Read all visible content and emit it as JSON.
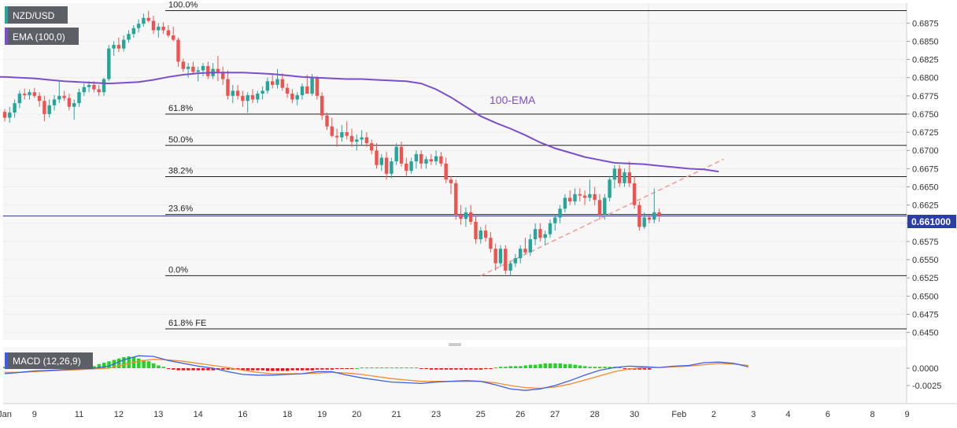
{
  "header": {
    "symbol_badge": "NZD/USD",
    "ema_badge": "EMA (100,0)",
    "macd_badge": "MACD (12,26,9)"
  },
  "colors": {
    "up": "#26a69a",
    "down": "#ef5350",
    "ema": "#7b4fc9",
    "trendline": "#ef9a9a",
    "price_line": "#2b3ea8",
    "macd_line": "#3f5fe0",
    "signal_line": "#f28b30",
    "hist_pos": "#21d421",
    "hist_neg": "#ee1111",
    "badge_bg": "#5c5f66",
    "panel_bg": "#f7f7f7"
  },
  "chart_data": {
    "type": "candlestick",
    "price_axis": {
      "ylim": [
        0.6442,
        0.6898
      ],
      "ticks": [
        "0.6875",
        "0.6850",
        "0.6825",
        "0.6800",
        "0.6775",
        "0.6750",
        "0.6725",
        "0.6700",
        "0.6675",
        "0.6650",
        "0.6625",
        "0.6600",
        "0.6575",
        "0.6550",
        "0.6525",
        "0.6500",
        "0.6475",
        "0.6450"
      ]
    },
    "current_price": "0.661000",
    "x_axis": {
      "ticks": [
        "Jan",
        "9",
        "11",
        "12",
        "13",
        "14",
        "16",
        "18",
        "19",
        "20",
        "21",
        "23",
        "25",
        "26",
        "27",
        "28",
        "30",
        "Feb",
        "2",
        "3",
        "4",
        "6",
        "8",
        "9"
      ]
    },
    "fib_levels": [
      {
        "label": "100.0%",
        "value": 0.6892
      },
      {
        "label": "61.8%",
        "value": 0.675
      },
      {
        "label": "50.0%",
        "value": 0.6707
      },
      {
        "label": "38.2%",
        "value": 0.6664
      },
      {
        "label": "23.6%",
        "value": 0.6612
      },
      {
        "label": "0.0%",
        "value": 0.6528
      },
      {
        "label": "61.8% FE",
        "value": 0.6455
      }
    ],
    "annotations": [
      {
        "text": "100-EMA"
      }
    ],
    "candles_ohlc": [
      [
        0.6753,
        0.6757,
        0.674,
        0.6745
      ],
      [
        0.6745,
        0.676,
        0.6738,
        0.6752
      ],
      [
        0.6752,
        0.677,
        0.6745,
        0.6765
      ],
      [
        0.6765,
        0.6782,
        0.6758,
        0.6778
      ],
      [
        0.6778,
        0.6785,
        0.677,
        0.6776
      ],
      [
        0.6776,
        0.6784,
        0.677,
        0.678
      ],
      [
        0.678,
        0.6786,
        0.6772,
        0.6775
      ],
      [
        0.6775,
        0.678,
        0.676,
        0.6768
      ],
      [
        0.6768,
        0.6775,
        0.674,
        0.675
      ],
      [
        0.675,
        0.677,
        0.6745,
        0.6762
      ],
      [
        0.6762,
        0.6776,
        0.6755,
        0.677
      ],
      [
        0.677,
        0.6795,
        0.6765,
        0.6775
      ],
      [
        0.6775,
        0.6782,
        0.6768,
        0.6772
      ],
      [
        0.6772,
        0.6778,
        0.6755,
        0.676
      ],
      [
        0.676,
        0.677,
        0.6742,
        0.6765
      ],
      [
        0.6765,
        0.6785,
        0.676,
        0.678
      ],
      [
        0.678,
        0.6792,
        0.6775,
        0.6787
      ],
      [
        0.6787,
        0.6795,
        0.678,
        0.679
      ],
      [
        0.679,
        0.6795,
        0.678,
        0.6784
      ],
      [
        0.6784,
        0.679,
        0.6775,
        0.678
      ],
      [
        0.678,
        0.68,
        0.6775,
        0.6798
      ],
      [
        0.6798,
        0.6845,
        0.6795,
        0.684
      ],
      [
        0.684,
        0.685,
        0.683,
        0.6845
      ],
      [
        0.6845,
        0.6855,
        0.6835,
        0.684
      ],
      [
        0.684,
        0.6858,
        0.6836,
        0.6852
      ],
      [
        0.6852,
        0.6865,
        0.6848,
        0.686
      ],
      [
        0.686,
        0.6872,
        0.6855,
        0.6868
      ],
      [
        0.6868,
        0.688,
        0.6862,
        0.6874
      ],
      [
        0.6874,
        0.6888,
        0.687,
        0.6882
      ],
      [
        0.6882,
        0.6892,
        0.6876,
        0.6878
      ],
      [
        0.6878,
        0.6885,
        0.686,
        0.6865
      ],
      [
        0.6865,
        0.6875,
        0.6855,
        0.687
      ],
      [
        0.687,
        0.6876,
        0.686,
        0.6865
      ],
      [
        0.6865,
        0.6872,
        0.6855,
        0.6858
      ],
      [
        0.6858,
        0.687,
        0.685,
        0.6852
      ],
      [
        0.6852,
        0.6855,
        0.6815,
        0.6822
      ],
      [
        0.6822,
        0.6826,
        0.6808,
        0.6812
      ],
      [
        0.6812,
        0.682,
        0.68,
        0.6815
      ],
      [
        0.6815,
        0.6822,
        0.6805,
        0.6808
      ],
      [
        0.6808,
        0.6815,
        0.6795,
        0.681
      ],
      [
        0.681,
        0.682,
        0.6802,
        0.6816
      ],
      [
        0.6816,
        0.6822,
        0.6798,
        0.6802
      ],
      [
        0.6802,
        0.682,
        0.6798,
        0.6812
      ],
      [
        0.6812,
        0.683,
        0.6795,
        0.6808
      ],
      [
        0.6808,
        0.6815,
        0.679,
        0.6798
      ],
      [
        0.6798,
        0.681,
        0.677,
        0.6775
      ],
      [
        0.6775,
        0.679,
        0.6765,
        0.6782
      ],
      [
        0.6782,
        0.679,
        0.677,
        0.6775
      ],
      [
        0.6775,
        0.6782,
        0.676,
        0.6768
      ],
      [
        0.6768,
        0.678,
        0.6752,
        0.6776
      ],
      [
        0.6776,
        0.6784,
        0.6765,
        0.677
      ],
      [
        0.677,
        0.6782,
        0.6765,
        0.6778
      ],
      [
        0.6778,
        0.6788,
        0.677,
        0.6782
      ],
      [
        0.6782,
        0.68,
        0.6778,
        0.6795
      ],
      [
        0.6795,
        0.6805,
        0.6785,
        0.679
      ],
      [
        0.679,
        0.6812,
        0.6785,
        0.6798
      ],
      [
        0.6798,
        0.6806,
        0.6782,
        0.6786
      ],
      [
        0.6786,
        0.6792,
        0.6772,
        0.6778
      ],
      [
        0.6778,
        0.6784,
        0.6765,
        0.677
      ],
      [
        0.677,
        0.678,
        0.6762,
        0.6776
      ],
      [
        0.6776,
        0.6792,
        0.677,
        0.6788
      ],
      [
        0.6788,
        0.6804,
        0.678,
        0.6778
      ],
      [
        0.6778,
        0.6805,
        0.6775,
        0.68
      ],
      [
        0.68,
        0.6802,
        0.677,
        0.6775
      ],
      [
        0.6775,
        0.678,
        0.6742,
        0.6748
      ],
      [
        0.6748,
        0.6752,
        0.6728,
        0.6733
      ],
      [
        0.6733,
        0.6745,
        0.6718,
        0.672
      ],
      [
        0.672,
        0.673,
        0.6705,
        0.6718
      ],
      [
        0.6718,
        0.6735,
        0.6712,
        0.6725
      ],
      [
        0.6725,
        0.674,
        0.6715,
        0.672
      ],
      [
        0.672,
        0.673,
        0.6705,
        0.6712
      ],
      [
        0.6712,
        0.6722,
        0.67,
        0.6715
      ],
      [
        0.6715,
        0.6728,
        0.6708,
        0.6718
      ],
      [
        0.6718,
        0.6725,
        0.6705,
        0.671
      ],
      [
        0.671,
        0.6715,
        0.6695,
        0.67
      ],
      [
        0.67,
        0.671,
        0.6675,
        0.668
      ],
      [
        0.668,
        0.6695,
        0.6672,
        0.669
      ],
      [
        0.669,
        0.6698,
        0.666,
        0.6668
      ],
      [
        0.6668,
        0.669,
        0.6662,
        0.6685
      ],
      [
        0.6685,
        0.671,
        0.668,
        0.6705
      ],
      [
        0.6705,
        0.6712,
        0.6678,
        0.6682
      ],
      [
        0.6682,
        0.669,
        0.6665,
        0.6672
      ],
      [
        0.6672,
        0.669,
        0.6668,
        0.6685
      ],
      [
        0.6685,
        0.67,
        0.6675,
        0.6695
      ],
      [
        0.6695,
        0.67,
        0.6675,
        0.6682
      ],
      [
        0.6682,
        0.6692,
        0.6675,
        0.6688
      ],
      [
        0.6688,
        0.6695,
        0.668,
        0.6685
      ],
      [
        0.6685,
        0.67,
        0.668,
        0.6692
      ],
      [
        0.6692,
        0.6698,
        0.6678,
        0.6682
      ],
      [
        0.6682,
        0.669,
        0.6655,
        0.666
      ],
      [
        0.666,
        0.6665,
        0.664,
        0.6655
      ],
      [
        0.6655,
        0.666,
        0.6605,
        0.6612
      ],
      [
        0.6612,
        0.6625,
        0.6598,
        0.6606
      ],
      [
        0.6606,
        0.6622,
        0.6595,
        0.6615
      ],
      [
        0.6615,
        0.6625,
        0.6598,
        0.6602
      ],
      [
        0.6602,
        0.661,
        0.6572,
        0.6578
      ],
      [
        0.6578,
        0.6595,
        0.6572,
        0.659
      ],
      [
        0.659,
        0.6598,
        0.6575,
        0.658
      ],
      [
        0.658,
        0.6588,
        0.656,
        0.6565
      ],
      [
        0.6565,
        0.6572,
        0.6535,
        0.6545
      ],
      [
        0.6545,
        0.657,
        0.654,
        0.6565
      ],
      [
        0.6565,
        0.657,
        0.653,
        0.6535
      ],
      [
        0.6535,
        0.6548,
        0.6528,
        0.6545
      ],
      [
        0.6545,
        0.6558,
        0.654,
        0.6552
      ],
      [
        0.6552,
        0.657,
        0.6545,
        0.6565
      ],
      [
        0.6565,
        0.658,
        0.6558,
        0.656
      ],
      [
        0.656,
        0.6585,
        0.6555,
        0.6578
      ],
      [
        0.6578,
        0.66,
        0.657,
        0.6592
      ],
      [
        0.6592,
        0.66,
        0.6575,
        0.658
      ],
      [
        0.658,
        0.659,
        0.657,
        0.6585
      ],
      [
        0.6585,
        0.6605,
        0.658,
        0.66
      ],
      [
        0.66,
        0.6612,
        0.659,
        0.6608
      ],
      [
        0.6608,
        0.6625,
        0.66,
        0.662
      ],
      [
        0.662,
        0.664,
        0.6615,
        0.6635
      ],
      [
        0.6635,
        0.6645,
        0.6625,
        0.663
      ],
      [
        0.663,
        0.6648,
        0.6625,
        0.664
      ],
      [
        0.664,
        0.6648,
        0.663,
        0.6638
      ],
      [
        0.6638,
        0.6645,
        0.6625,
        0.6635
      ],
      [
        0.6635,
        0.666,
        0.663,
        0.664
      ],
      [
        0.664,
        0.665,
        0.6625,
        0.6632
      ],
      [
        0.6632,
        0.664,
        0.6605,
        0.6612
      ],
      [
        0.6612,
        0.664,
        0.6605,
        0.6635
      ],
      [
        0.6635,
        0.6665,
        0.663,
        0.666
      ],
      [
        0.666,
        0.668,
        0.6648,
        0.6675
      ],
      [
        0.6675,
        0.668,
        0.665,
        0.6655
      ],
      [
        0.6655,
        0.6675,
        0.665,
        0.667
      ],
      [
        0.667,
        0.6685,
        0.665,
        0.6655
      ],
      [
        0.6655,
        0.6665,
        0.662,
        0.6625
      ],
      [
        0.6625,
        0.663,
        0.659,
        0.6595
      ],
      [
        0.6595,
        0.6615,
        0.6592,
        0.6608
      ],
      [
        0.6608,
        0.6612,
        0.66,
        0.6605
      ],
      [
        0.6605,
        0.6648,
        0.66,
        0.6615
      ],
      [
        0.6615,
        0.662,
        0.6602,
        0.661
      ]
    ],
    "ema_100": [
      0.6801,
      0.68,
      0.6799,
      0.6797,
      0.6795,
      0.6794,
      0.6793,
      0.6792,
      0.6793,
      0.6794,
      0.6797,
      0.6801,
      0.6804,
      0.6806,
      0.6807,
      0.6807,
      0.6807,
      0.6806,
      0.6805,
      0.6803,
      0.6801,
      0.68,
      0.6799,
      0.6798,
      0.6798,
      0.6797,
      0.6796,
      0.6795,
      0.6792,
      0.6784,
      0.6773,
      0.676,
      0.6747,
      0.6738,
      0.673,
      0.6721,
      0.6711,
      0.6703,
      0.6697,
      0.6691,
      0.6687,
      0.6683,
      0.6682,
      0.6681,
      0.6679,
      0.6677,
      0.6675,
      0.6674,
      0.6671
    ],
    "ema_step": 3,
    "macd_axis": {
      "ticks": [
        "0.0000",
        "-0.0025"
      ]
    },
    "macd_line": [
      -0.0008,
      -0.0006,
      -0.0004,
      -0.0003,
      -0.0002,
      -0.0001,
      0.0,
      0.0003,
      0.0012,
      0.0018,
      0.0017,
      0.0011,
      0.0007,
      0.0003,
      0.0,
      -0.0005,
      -0.0009,
      -0.001,
      -0.001,
      -0.0009,
      -0.0008,
      -0.0005,
      -0.0005,
      -0.001,
      -0.0014,
      -0.0017,
      -0.002,
      -0.0021,
      -0.0022,
      -0.002,
      -0.0019,
      -0.0018,
      -0.0019,
      -0.0024,
      -0.003,
      -0.0032,
      -0.003,
      -0.0025,
      -0.0018,
      -0.001,
      -0.0003,
      0.0001,
      0.0003,
      0.0002,
      0.0001,
      0.0003,
      0.0004,
      0.0008,
      0.0009,
      0.0007,
      0.0002
    ],
    "signal_line": [
      -0.0006,
      -0.0006,
      -0.0005,
      -0.0004,
      -0.0003,
      -0.0002,
      -0.0001,
      0.0,
      0.0005,
      0.001,
      0.0013,
      0.0012,
      0.001,
      0.0007,
      0.0004,
      0.0001,
      -0.0003,
      -0.0006,
      -0.0008,
      -0.0008,
      -0.0008,
      -0.0007,
      -0.0006,
      -0.0007,
      -0.0009,
      -0.0012,
      -0.0015,
      -0.0017,
      -0.0019,
      -0.0019,
      -0.0019,
      -0.0019,
      -0.0019,
      -0.0021,
      -0.0025,
      -0.0028,
      -0.0029,
      -0.0027,
      -0.0023,
      -0.0017,
      -0.0011,
      -0.0005,
      -0.0001,
      0.0001,
      0.0001,
      0.0002,
      0.0003,
      0.0005,
      0.0007,
      0.0006,
      0.0004
    ],
    "macd_step": 3,
    "macd_hist": [
      0.0002,
      0.0002,
      0.0002,
      0.0002,
      0.0002,
      0.0002,
      0.0002,
      0.0002,
      0.0003,
      0.0003,
      0.0003,
      0.0002,
      0.0003,
      0.0003,
      0.0003,
      0.0003,
      0.0002,
      0.0003,
      0.0003,
      0.0006,
      0.0008,
      0.001,
      0.0012,
      0.0014,
      0.0016,
      0.0017,
      0.0016,
      0.0014,
      0.0012,
      0.001,
      0.0007,
      0.0004,
      0.0002,
      -0.0001,
      -0.0002,
      -0.0003,
      -0.0003,
      -0.0003,
      -0.0003,
      -0.0003,
      -0.0003,
      -0.0003,
      -0.0003,
      -0.0002,
      -0.0002,
      -0.0002,
      -0.0002,
      -0.0002,
      -0.0003,
      -0.0003,
      -0.0003,
      -0.0003,
      -0.0003,
      -0.0004,
      -0.0004,
      -0.0004,
      -0.0004,
      -0.0004,
      -0.0003,
      -0.0003,
      -0.0003,
      -0.0003,
      -0.0003,
      -0.0002,
      -0.0002,
      -0.0002,
      -0.0002,
      -0.0001,
      -0.0001,
      -0.0001,
      -0.0001,
      0.0,
      0.0001,
      0.0001,
      0.0001,
      0.0001,
      0.0001,
      0.0001,
      0.0001,
      0.0001,
      0.0001,
      0.0001,
      0.0001,
      0.0001,
      -0.0001,
      -0.0001,
      -0.0002,
      -0.0002,
      -0.0002,
      -0.0002,
      -0.0002,
      -0.0002,
      -0.0002,
      -0.0002,
      -0.0002,
      -0.0002,
      -0.0002,
      -0.0001,
      -0.0001,
      0.0001,
      0.0002,
      0.0002,
      0.0003,
      0.0003,
      0.0003,
      0.0004,
      0.0005,
      0.0005,
      0.0006,
      0.0007,
      0.0007,
      0.0007,
      0.0007,
      0.0006,
      0.0006,
      0.0005,
      0.0004,
      0.0003,
      0.0002,
      0.0002,
      0.0002,
      0.0002,
      0.0002,
      0.0002,
      0.0002,
      -0.0001,
      -0.0002,
      -0.0002,
      -0.0002,
      -0.0002,
      -0.0002
    ]
  }
}
